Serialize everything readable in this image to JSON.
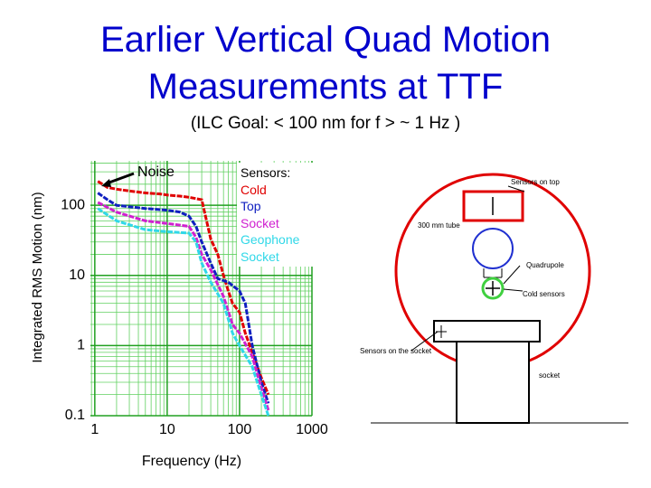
{
  "slide": {
    "title": "Earlier Vertical Quad Motion Measurements at TTF",
    "subtitle": "(ILC Goal: < 100 nm for f > ~ 1 Hz )"
  },
  "chart_data": {
    "type": "line",
    "xscale": "log",
    "yscale": "log",
    "grid": true,
    "xlabel": "Frequency (Hz)",
    "ylabel": "Integrated RMS Motion (nm)",
    "xlim": [
      0.87,
      1000
    ],
    "ylim": [
      0.1,
      430
    ],
    "xticks": [
      1,
      10,
      100,
      1000
    ],
    "yticks": [
      0.1,
      1,
      10,
      100
    ],
    "legend_title": "Sensors:",
    "legend": "top-right",
    "annotation": "Noise",
    "series": [
      {
        "name": "Cold",
        "color": "#e00000",
        "x": [
          1.1,
          1.5,
          2,
          3,
          5,
          8,
          10,
          15,
          20,
          30,
          40,
          50,
          60,
          70,
          80,
          100,
          120,
          150,
          200,
          250
        ],
        "values": [
          220,
          180,
          170,
          160,
          150,
          145,
          140,
          135,
          130,
          120,
          33,
          20,
          10,
          6,
          4,
          3,
          1.5,
          0.8,
          0.35,
          0.2
        ]
      },
      {
        "name": "Top",
        "color": "#1020c0",
        "x": [
          1.1,
          1.5,
          2,
          5,
          10,
          15,
          20,
          25,
          30,
          40,
          50,
          70,
          100,
          120,
          150,
          200,
          250
        ],
        "values": [
          150,
          120,
          100,
          90,
          85,
          80,
          70,
          50,
          30,
          15,
          9,
          8,
          6,
          4,
          1,
          0.3,
          0.15
        ]
      },
      {
        "name": "Socket",
        "color": "#d020d0",
        "x": [
          1.1,
          2,
          5,
          10,
          20,
          25,
          30,
          40,
          60,
          80,
          100,
          150,
          200,
          250
        ],
        "values": [
          110,
          80,
          60,
          55,
          50,
          35,
          20,
          12,
          5,
          2,
          1.5,
          0.7,
          0.25,
          0.12
        ]
      },
      {
        "name": "Geophone Socket",
        "color": "#30d8e8",
        "x": [
          1.1,
          2,
          5,
          10,
          20,
          25,
          30,
          40,
          60,
          80,
          100,
          150,
          200,
          250
        ],
        "values": [
          90,
          60,
          45,
          42,
          40,
          30,
          15,
          8,
          4,
          1.5,
          1,
          0.5,
          0.2,
          0.1
        ]
      }
    ]
  },
  "diagram": {
    "sensors_top": "Sensors on top",
    "tube": "300 mm tube",
    "quadrupole": "Quadrupole",
    "cold_sensors": "Cold sensors",
    "sensors_socket": "Sensors on the socket",
    "socket": "socket"
  }
}
